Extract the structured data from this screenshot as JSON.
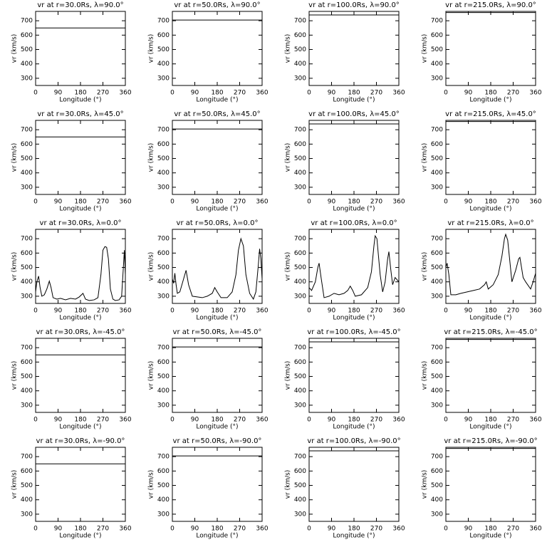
{
  "chart_data": [
    {
      "type": "line",
      "title": "vr at r=30.0Rs, λ=90.0°",
      "xlabel": "Longitude (°)",
      "ylabel": "vr (km/s)",
      "xlim": [
        0,
        360
      ],
      "xticks": [
        0,
        90,
        180,
        270,
        360
      ],
      "ylim": [
        250,
        765
      ],
      "yticks": [
        300,
        400,
        500,
        600,
        700
      ],
      "x": [
        0,
        360
      ],
      "series": [
        {
          "color": "#000000",
          "values": [
            650,
            650
          ]
        }
      ]
    },
    {
      "type": "line",
      "title": "vr at r=50.0Rs, λ=90.0°",
      "xlabel": "Longitude (°)",
      "ylabel": "vr (km/s)",
      "xlim": [
        0,
        360
      ],
      "xticks": [
        0,
        90,
        180,
        270,
        360
      ],
      "ylim": [
        250,
        765
      ],
      "yticks": [
        300,
        400,
        500,
        600,
        700
      ],
      "x": [
        0,
        360
      ],
      "series": [
        {
          "color": "#000000",
          "values": [
            705,
            705
          ]
        }
      ]
    },
    {
      "type": "line",
      "title": "vr at r=100.0Rs, λ=90.0°",
      "xlabel": "Longitude (°)",
      "ylabel": "vr (km/s)",
      "xlim": [
        0,
        360
      ],
      "xticks": [
        0,
        90,
        180,
        270,
        360
      ],
      "ylim": [
        250,
        765
      ],
      "yticks": [
        300,
        400,
        500,
        600,
        700
      ],
      "x": [
        0,
        360
      ],
      "series": [
        {
          "color": "#000000",
          "values": [
            740,
            740
          ]
        }
      ]
    },
    {
      "type": "line",
      "title": "vr at r=215.0Rs, λ=90.0°",
      "xlabel": "Longitude (°)",
      "ylabel": "vr (km/s)",
      "xlim": [
        0,
        360
      ],
      "xticks": [
        0,
        90,
        180,
        270,
        360
      ],
      "ylim": [
        250,
        765
      ],
      "yticks": [
        300,
        400,
        500,
        600,
        700
      ],
      "x": [
        0,
        360
      ],
      "series": [
        {
          "color": "#000000",
          "values": [
            757,
            757
          ]
        }
      ]
    },
    {
      "type": "line",
      "title": "vr at r=30.0Rs, λ=45.0°",
      "xlabel": "Longitude (°)",
      "ylabel": "vr (km/s)",
      "xlim": [
        0,
        360
      ],
      "xticks": [
        0,
        90,
        180,
        270,
        360
      ],
      "ylim": [
        250,
        765
      ],
      "yticks": [
        300,
        400,
        500,
        600,
        700
      ],
      "x": [
        0,
        360
      ],
      "series": [
        {
          "color": "#000000",
          "values": [
            650,
            650
          ]
        }
      ]
    },
    {
      "type": "line",
      "title": "vr at r=50.0Rs, λ=45.0°",
      "xlabel": "Longitude (°)",
      "ylabel": "vr (km/s)",
      "xlim": [
        0,
        360
      ],
      "xticks": [
        0,
        90,
        180,
        270,
        360
      ],
      "ylim": [
        250,
        765
      ],
      "yticks": [
        300,
        400,
        500,
        600,
        700
      ],
      "x": [
        0,
        360
      ],
      "series": [
        {
          "color": "#000000",
          "values": [
            705,
            705
          ]
        }
      ]
    },
    {
      "type": "line",
      "title": "vr at r=100.0Rs, λ=45.0°",
      "xlabel": "Longitude (°)",
      "ylabel": "vr (km/s)",
      "xlim": [
        0,
        360
      ],
      "xticks": [
        0,
        90,
        180,
        270,
        360
      ],
      "ylim": [
        250,
        765
      ],
      "yticks": [
        300,
        400,
        500,
        600,
        700
      ],
      "x": [
        0,
        360
      ],
      "series": [
        {
          "color": "#000000",
          "values": [
            740,
            740
          ]
        }
      ]
    },
    {
      "type": "line",
      "title": "vr at r=215.0Rs, λ=45.0°",
      "xlabel": "Longitude (°)",
      "ylabel": "vr (km/s)",
      "xlim": [
        0,
        360
      ],
      "xticks": [
        0,
        90,
        180,
        270,
        360
      ],
      "ylim": [
        250,
        765
      ],
      "yticks": [
        300,
        400,
        500,
        600,
        700
      ],
      "x": [
        0,
        360
      ],
      "series": [
        {
          "color": "#000000",
          "values": [
            757,
            757
          ]
        }
      ]
    },
    {
      "type": "line",
      "title": "vr at r=30.0Rs, λ=0.0°",
      "xlabel": "Longitude (°)",
      "ylabel": "vr (km/s)",
      "xlim": [
        0,
        360
      ],
      "xticks": [
        0,
        90,
        180,
        270,
        360
      ],
      "ylim": [
        250,
        765
      ],
      "yticks": [
        300,
        400,
        500,
        600,
        700
      ],
      "x": [
        0,
        5,
        12,
        18,
        25,
        35,
        45,
        55,
        62,
        70,
        85,
        100,
        120,
        140,
        160,
        175,
        190,
        200,
        215,
        235,
        250,
        262,
        270,
        278,
        285,
        292,
        300,
        310,
        320,
        335,
        345,
        352,
        356,
        360
      ],
      "series": [
        {
          "color": "#000000",
          "values": [
            330,
            400,
            440,
            360,
            300,
            310,
            350,
            405,
            360,
            290,
            280,
            285,
            275,
            285,
            280,
            295,
            320,
            280,
            270,
            275,
            290,
            450,
            620,
            645,
            640,
            560,
            350,
            280,
            270,
            275,
            300,
            500,
            620,
            450
          ]
        }
      ]
    },
    {
      "type": "line",
      "title": "vr at r=50.0Rs, λ=0.0°",
      "xlabel": "Longitude (°)",
      "ylabel": "vr (km/s)",
      "xlim": [
        0,
        360
      ],
      "xticks": [
        0,
        90,
        180,
        270,
        360
      ],
      "ylim": [
        250,
        765
      ],
      "yticks": [
        300,
        400,
        500,
        600,
        700
      ],
      "x": [
        0,
        5,
        10,
        15,
        20,
        30,
        45,
        55,
        65,
        80,
        100,
        120,
        140,
        160,
        170,
        180,
        195,
        220,
        240,
        255,
        265,
        275,
        285,
        295,
        310,
        325,
        335,
        345,
        350,
        355,
        360
      ],
      "series": [
        {
          "color": "#000000",
          "values": [
            420,
            390,
            460,
            380,
            320,
            330,
            420,
            480,
            380,
            300,
            295,
            290,
            300,
            320,
            360,
            330,
            290,
            290,
            330,
            450,
            620,
            700,
            650,
            450,
            320,
            280,
            330,
            520,
            630,
            560,
            420
          ]
        }
      ]
    },
    {
      "type": "line",
      "title": "vr at r=100.0Rs, λ=0.0°",
      "xlabel": "Longitude (°)",
      "ylabel": "vr (km/s)",
      "xlim": [
        0,
        360
      ],
      "xticks": [
        0,
        90,
        180,
        270,
        360
      ],
      "ylim": [
        250,
        765
      ],
      "yticks": [
        300,
        400,
        500,
        600,
        700
      ],
      "x": [
        0,
        10,
        25,
        35,
        40,
        48,
        60,
        80,
        100,
        120,
        140,
        155,
        165,
        175,
        185,
        210,
        235,
        250,
        260,
        265,
        272,
        285,
        295,
        305,
        315,
        320,
        328,
        335,
        345,
        360
      ],
      "series": [
        {
          "color": "#000000",
          "values": [
            360,
            340,
            400,
            500,
            530,
            430,
            290,
            300,
            320,
            310,
            320,
            340,
            370,
            340,
            300,
            310,
            360,
            470,
            650,
            720,
            700,
            450,
            330,
            400,
            560,
            610,
            480,
            380,
            430,
            400
          ]
        }
      ]
    },
    {
      "type": "line",
      "title": "vr at r=215.0Rs, λ=0.0°",
      "xlabel": "Longitude (°)",
      "ylabel": "vr (km/s)",
      "xlim": [
        0,
        360
      ],
      "xticks": [
        0,
        90,
        180,
        270,
        360
      ],
      "ylim": [
        250,
        765
      ],
      "yticks": [
        300,
        400,
        500,
        600,
        700
      ],
      "x": [
        0,
        5,
        12,
        20,
        40,
        60,
        85,
        110,
        135,
        155,
        162,
        170,
        190,
        210,
        225,
        235,
        240,
        248,
        258,
        265,
        280,
        292,
        297,
        310,
        320,
        340,
        350,
        360
      ],
      "series": [
        {
          "color": "#000000",
          "values": [
            500,
            530,
            450,
            310,
            310,
            320,
            330,
            340,
            350,
            380,
            400,
            350,
            380,
            450,
            580,
            700,
            730,
            690,
            520,
            400,
            480,
            560,
            570,
            430,
            400,
            350,
            400,
            460
          ]
        }
      ]
    },
    {
      "type": "line",
      "title": "vr at r=30.0Rs, λ=-45.0°",
      "xlabel": "Longitude (°)",
      "ylabel": "vr (km/s)",
      "xlim": [
        0,
        360
      ],
      "xticks": [
        0,
        90,
        180,
        270,
        360
      ],
      "ylim": [
        250,
        765
      ],
      "yticks": [
        300,
        400,
        500,
        600,
        700
      ],
      "x": [
        0,
        360
      ],
      "series": [
        {
          "color": "#000000",
          "values": [
            650,
            650
          ]
        }
      ]
    },
    {
      "type": "line",
      "title": "vr at r=50.0Rs, λ=-45.0°",
      "xlabel": "Longitude (°)",
      "ylabel": "vr (km/s)",
      "xlim": [
        0,
        360
      ],
      "xticks": [
        0,
        90,
        180,
        270,
        360
      ],
      "ylim": [
        250,
        765
      ],
      "yticks": [
        300,
        400,
        500,
        600,
        700
      ],
      "x": [
        0,
        360
      ],
      "series": [
        {
          "color": "#000000",
          "values": [
            705,
            705
          ]
        }
      ]
    },
    {
      "type": "line",
      "title": "vr at r=100.0Rs, λ=-45.0°",
      "xlabel": "Longitude (°)",
      "ylabel": "vr (km/s)",
      "xlim": [
        0,
        360
      ],
      "xticks": [
        0,
        90,
        180,
        270,
        360
      ],
      "ylim": [
        250,
        765
      ],
      "yticks": [
        300,
        400,
        500,
        600,
        700
      ],
      "x": [
        0,
        360
      ],
      "series": [
        {
          "color": "#000000",
          "values": [
            740,
            740
          ]
        }
      ]
    },
    {
      "type": "line",
      "title": "vr at r=215.0Rs, λ=-45.0°",
      "xlabel": "Longitude (°)",
      "ylabel": "vr (km/s)",
      "xlim": [
        0,
        360
      ],
      "xticks": [
        0,
        90,
        180,
        270,
        360
      ],
      "ylim": [
        250,
        765
      ],
      "yticks": [
        300,
        400,
        500,
        600,
        700
      ],
      "x": [
        0,
        360
      ],
      "series": [
        {
          "color": "#000000",
          "values": [
            757,
            757
          ]
        }
      ]
    },
    {
      "type": "line",
      "title": "vr at r=30.0Rs, λ=-90.0°",
      "xlabel": "Longitude (°)",
      "ylabel": "vr (km/s)",
      "xlim": [
        0,
        360
      ],
      "xticks": [
        0,
        90,
        180,
        270,
        360
      ],
      "ylim": [
        250,
        765
      ],
      "yticks": [
        300,
        400,
        500,
        600,
        700
      ],
      "x": [
        0,
        360
      ],
      "series": [
        {
          "color": "#000000",
          "values": [
            650,
            650
          ]
        }
      ]
    },
    {
      "type": "line",
      "title": "vr at r=50.0Rs, λ=-90.0°",
      "xlabel": "Longitude (°)",
      "ylabel": "vr (km/s)",
      "xlim": [
        0,
        360
      ],
      "xticks": [
        0,
        90,
        180,
        270,
        360
      ],
      "ylim": [
        250,
        765
      ],
      "yticks": [
        300,
        400,
        500,
        600,
        700
      ],
      "x": [
        0,
        360
      ],
      "series": [
        {
          "color": "#000000",
          "values": [
            705,
            705
          ]
        }
      ]
    },
    {
      "type": "line",
      "title": "vr at r=100.0Rs, λ=-90.0°",
      "xlabel": "Longitude (°)",
      "ylabel": "vr (km/s)",
      "xlim": [
        0,
        360
      ],
      "xticks": [
        0,
        90,
        180,
        270,
        360
      ],
      "ylim": [
        250,
        765
      ],
      "yticks": [
        300,
        400,
        500,
        600,
        700
      ],
      "x": [
        0,
        360
      ],
      "series": [
        {
          "color": "#000000",
          "values": [
            740,
            740
          ]
        }
      ]
    },
    {
      "type": "line",
      "title": "vr at r=215.0Rs, λ=-90.0°",
      "xlabel": "Longitude (°)",
      "ylabel": "vr (km/s)",
      "xlim": [
        0,
        360
      ],
      "xticks": [
        0,
        90,
        180,
        270,
        360
      ],
      "ylim": [
        250,
        765
      ],
      "yticks": [
        300,
        400,
        500,
        600,
        700
      ],
      "x": [
        0,
        360
      ],
      "series": [
        {
          "color": "#000000",
          "values": [
            757,
            757
          ]
        }
      ]
    }
  ]
}
